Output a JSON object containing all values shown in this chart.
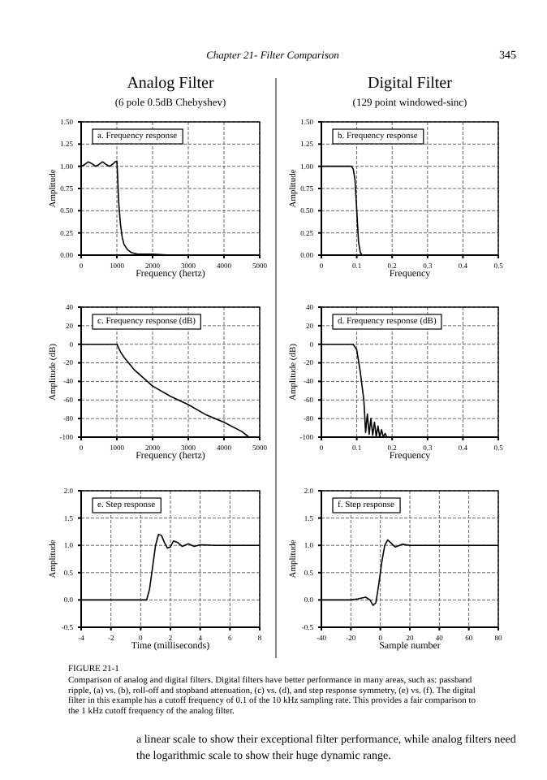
{
  "chart_data": [
    {
      "type": "line",
      "title": "Analog Filter",
      "subtitle": "(6 pole 0.5dB Chebyshev)",
      "xlabel": "Frequency (hertz)",
      "ylabel": "Amplitude",
      "annotations": [
        "a. Frequency response",
        "Chapter 21- Filter Comparison",
        "345"
      ],
      "grid": true,
      "line_style": "solid",
      "xlim": [
        0,
        5000
      ],
      "xticks": [
        0,
        1000,
        2000,
        3000,
        4000,
        5000
      ],
      "ylim": [
        0,
        1.5
      ],
      "yticks": [
        {
          "value": 0,
          "label": "0.00"
        },
        {
          "value": 0.25,
          "label": "0.25"
        },
        {
          "value": 0.5,
          "label": "0.50"
        },
        {
          "value": 0.75,
          "label": "0.75"
        },
        {
          "value": 1,
          "label": "1.00"
        },
        {
          "value": 1.25,
          "label": "1.25"
        },
        {
          "value": 1.5,
          "label": "1.50"
        }
      ],
      "series": [
        {
          "color": "#000000",
          "x": [
            0,
            100,
            200,
            300,
            400,
            500,
            600,
            700,
            800,
            900,
            950,
            1000,
            1020,
            1050,
            1100,
            1150,
            1200,
            1300,
            1400,
            1600,
            2000,
            2500,
            5000
          ],
          "values": [
            1.0,
            1.02,
            1.05,
            1.03,
            1.0,
            1.02,
            1.05,
            1.02,
            1.0,
            1.03,
            1.05,
            1.06,
            0.9,
            0.6,
            0.35,
            0.2,
            0.12,
            0.06,
            0.03,
            0.01,
            0.01,
            0,
            0
          ]
        }
      ]
    },
    {
      "type": "line",
      "title": "Digital Filter",
      "subtitle": "(129 point windowed-sinc)",
      "xlabel": "Frequency",
      "ylabel": "Amplitude",
      "annotations": [
        "b. Frequency response"
      ],
      "grid": true,
      "line_style": "solid",
      "xlim": [
        0,
        0.5
      ],
      "xticks": [
        0,
        0.1,
        0.2,
        0.3,
        0.4,
        0.5
      ],
      "ylim": [
        0,
        1.5
      ],
      "yticks": [
        {
          "value": 0,
          "label": "0.00"
        },
        {
          "value": 0.25,
          "label": "0.25"
        },
        {
          "value": 0.5,
          "label": "0.50"
        },
        {
          "value": 0.75,
          "label": "0.75"
        },
        {
          "value": 1,
          "label": "1.00"
        },
        {
          "value": 1.25,
          "label": "1.25"
        },
        {
          "value": 1.5,
          "label": "1.50"
        }
      ],
      "series": [
        {
          "color": "#000000",
          "x": [
            0,
            0.085,
            0.09,
            0.095,
            0.1,
            0.105,
            0.11,
            0.115,
            0.5
          ],
          "values": [
            1.0,
            1.0,
            0.97,
            0.85,
            0.5,
            0.15,
            0.03,
            0,
            0
          ]
        }
      ]
    },
    {
      "type": "line",
      "xlabel": "Frequency (hertz)",
      "ylabel": "Amplitude (dB)",
      "annotations": [
        "c. Frequency response (dB)"
      ],
      "grid": true,
      "line_style": "solid",
      "xlim": [
        0,
        5000
      ],
      "xticks": [
        0,
        1000,
        2000,
        3000,
        4000,
        5000
      ],
      "ylim": [
        -100,
        40
      ],
      "yticks": [
        -100,
        -80,
        -60,
        -40,
        -20,
        0,
        20,
        40
      ],
      "series": [
        {
          "color": "#000000",
          "x": [
            0,
            1000,
            1100,
            1200,
            1500,
            2000,
            2500,
            3000,
            3500,
            4000,
            4500,
            4700
          ],
          "values": [
            0,
            0,
            -8,
            -14,
            -28,
            -45,
            -56,
            -65,
            -76,
            -84,
            -94,
            -100
          ]
        }
      ]
    },
    {
      "type": "line",
      "xlabel": "Frequency",
      "ylabel": "Amplitude (dB)",
      "annotations": [
        "d. Frequency response (dB)"
      ],
      "grid": true,
      "line_style": "solid",
      "xlim": [
        0,
        0.5
      ],
      "xticks": [
        0,
        0.1,
        0.2,
        0.3,
        0.4,
        0.5
      ],
      "ylim": [
        -100,
        40
      ],
      "yticks": [
        -100,
        -80,
        -60,
        -40,
        -20,
        0,
        20,
        40
      ],
      "series": [
        {
          "color": "#000000",
          "x": [
            0,
            0.09,
            0.1,
            0.11,
            0.12,
            0.125,
            0.13,
            0.135,
            0.14,
            0.145,
            0.15,
            0.155,
            0.16,
            0.165,
            0.17,
            0.175,
            0.18,
            0.185
          ],
          "values": [
            0,
            0,
            -6,
            -30,
            -60,
            -95,
            -75,
            -97,
            -80,
            -98,
            -84,
            -99,
            -88,
            -100,
            -92,
            -100,
            -96,
            -100
          ]
        }
      ]
    },
    {
      "type": "line",
      "xlabel": "Time (milliseconds)",
      "ylabel": "Amplitude",
      "annotations": [
        "e. Step response"
      ],
      "grid": true,
      "line_style": "solid",
      "xlim": [
        -4,
        8
      ],
      "xticks": [
        -4,
        -2,
        0,
        2,
        4,
        6,
        8
      ],
      "ylim": [
        -0.5,
        2
      ],
      "yticks": [
        {
          "value": -0.5,
          "label": "-0.5"
        },
        {
          "value": 0,
          "label": "0.0"
        },
        {
          "value": 0.5,
          "label": "0.5"
        },
        {
          "value": 1,
          "label": "1.0"
        },
        {
          "value": 1.5,
          "label": "1.5"
        },
        {
          "value": 2,
          "label": "2.0"
        }
      ],
      "series": [
        {
          "color": "#000000",
          "x": [
            -4,
            0.4,
            0.6,
            0.8,
            1.0,
            1.2,
            1.4,
            1.6,
            1.8,
            2.0,
            2.2,
            2.5,
            2.8,
            3.2,
            3.6,
            4,
            5,
            8
          ],
          "values": [
            0,
            0,
            0.2,
            0.6,
            1.0,
            1.2,
            1.18,
            1.05,
            0.95,
            0.97,
            1.08,
            1.05,
            0.98,
            1.03,
            0.98,
            1.01,
            1.0,
            1.0
          ]
        }
      ]
    },
    {
      "type": "line",
      "xlabel": "Sample number",
      "ylabel": "Amplitude",
      "annotations": [
        "f. Step response",
        "FIGURE 21-1",
        "Comparison of analog and digital filters.  Digital filters have better performance in many areas, such as: passband ripple, (a) vs. (b), roll-off and stopband attenuation, (c) vs. (d), and step response symmetry, (e) vs. (f).  The digital filter in this example has a cutoff frequency of 0.1 of the 10 kHz sampling rate. This provides a fair comparison to the 1 kHz cutoff frequency of the analog filter.",
        "a linear scale to show their exceptional filter performance, while analog filters need the logarithmic scale to show their huge dynamic range."
      ],
      "grid": true,
      "line_style": "solid",
      "xlim": [
        -40,
        80
      ],
      "xticks": [
        -40,
        -20,
        0,
        20,
        40,
        60,
        80
      ],
      "ylim": [
        -0.5,
        2
      ],
      "yticks": [
        {
          "value": -0.5,
          "label": "-0.5"
        },
        {
          "value": 0,
          "label": "0.0"
        },
        {
          "value": 0.5,
          "label": "0.5"
        },
        {
          "value": 1,
          "label": "1.0"
        },
        {
          "value": 1.5,
          "label": "1.5"
        },
        {
          "value": 2,
          "label": "2.0"
        }
      ],
      "series": [
        {
          "color": "#000000",
          "x": [
            -40,
            -20,
            -15,
            -10,
            -7,
            -5,
            -3,
            -1,
            0,
            1,
            3,
            5,
            7,
            10,
            13,
            15,
            20,
            80
          ],
          "values": [
            0,
            0,
            0.02,
            0.05,
            0,
            -0.1,
            -0.05,
            0.3,
            0.5,
            0.7,
            1.0,
            1.1,
            1.05,
            0.97,
            1.0,
            1.02,
            1.0,
            1.0
          ]
        }
      ]
    }
  ]
}
